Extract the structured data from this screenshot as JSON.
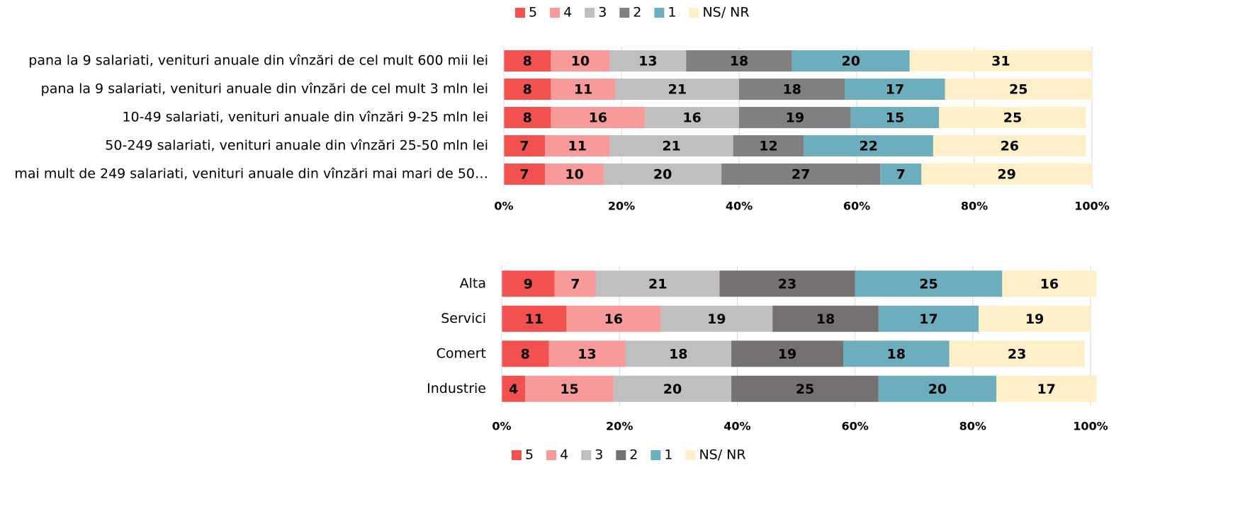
{
  "chart_data": [
    {
      "type": "bar",
      "orientation": "horizontal",
      "stacked": true,
      "legend": "top",
      "grid": true,
      "categories": [
        "pana la 9 salariati, venituri anuale din vînzări de cel mult 600 mii lei",
        "pana la 9 salariati, venituri anuale din vînzări de cel mult 3 mln lei",
        "10-49 salariati, venituri anuale din vînzări 9-25 mln lei",
        "50-249 salariati, venituri anuale din vînzări 25-50 mln lei",
        "mai mult de 249 salariati, venituri anuale din vînzări mai mari de 50…"
      ],
      "series": [
        {
          "name": "5",
          "color": "#f35150",
          "values": [
            8,
            8,
            8,
            7,
            7
          ]
        },
        {
          "name": "4",
          "color": "#f79a99",
          "values": [
            10,
            11,
            16,
            11,
            10
          ]
        },
        {
          "name": "3",
          "color": "#bfbfbf",
          "values": [
            13,
            21,
            16,
            21,
            20
          ]
        },
        {
          "name": "2",
          "color": "#808080",
          "values": [
            18,
            18,
            19,
            12,
            27
          ]
        },
        {
          "name": "1",
          "color": "#6caebe",
          "values": [
            20,
            17,
            15,
            22,
            7
          ]
        },
        {
          "name": "NS/ NR",
          "color": "#fdf0c8",
          "values": [
            31,
            25,
            25,
            26,
            29
          ]
        }
      ],
      "xlim": [
        0,
        100
      ],
      "xticks": [
        {
          "value": 0,
          "label": "0%"
        },
        {
          "value": 20,
          "label": "20%"
        },
        {
          "value": 40,
          "label": "40%"
        },
        {
          "value": 60,
          "label": "60%"
        },
        {
          "value": 80,
          "label": "80%"
        },
        {
          "value": 100,
          "label": "100%"
        }
      ]
    },
    {
      "type": "bar",
      "orientation": "horizontal",
      "stacked": true,
      "legend": "bottom",
      "grid": true,
      "categories": [
        "Alta",
        "Servici",
        "Comert",
        "Industrie"
      ],
      "series": [
        {
          "name": "5",
          "color": "#f35150",
          "values": [
            9,
            11,
            8,
            4
          ]
        },
        {
          "name": "4",
          "color": "#f79a99",
          "values": [
            7,
            16,
            13,
            15
          ]
        },
        {
          "name": "3",
          "color": "#bfbfbf",
          "values": [
            21,
            19,
            18,
            20
          ]
        },
        {
          "name": "2",
          "color": "#767171",
          "values": [
            23,
            18,
            19,
            25
          ]
        },
        {
          "name": "1",
          "color": "#6caebe",
          "values": [
            25,
            17,
            18,
            20
          ]
        },
        {
          "name": "NS/ NR",
          "color": "#fdf0c8",
          "values": [
            16,
            19,
            23,
            17
          ]
        }
      ],
      "xlim": [
        0,
        100
      ],
      "xticks": [
        {
          "value": 0,
          "label": "0%"
        },
        {
          "value": 20,
          "label": "20%"
        },
        {
          "value": 40,
          "label": "40%"
        },
        {
          "value": 60,
          "label": "60%"
        },
        {
          "value": 80,
          "label": "80%"
        },
        {
          "value": 100,
          "label": "100%"
        }
      ]
    }
  ]
}
